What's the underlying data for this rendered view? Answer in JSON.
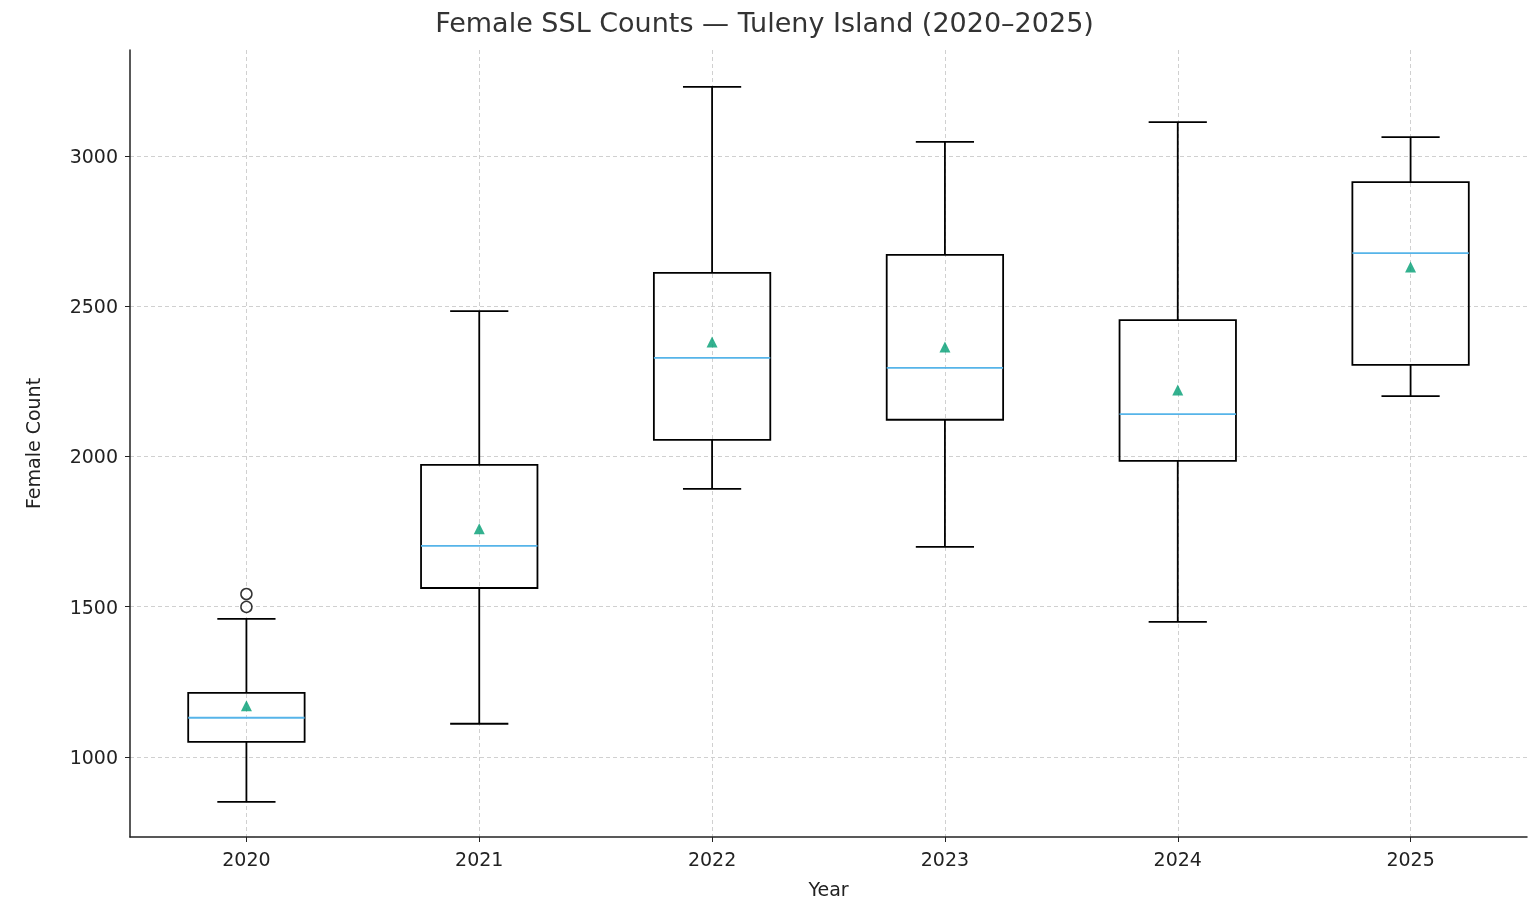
{
  "chart_data": {
    "type": "box",
    "title": "Female SSL Counts — Tuleny Island (2020–2025)",
    "xlabel": "Year",
    "ylabel": "Female Count",
    "categories": [
      "2020",
      "2021",
      "2022",
      "2023",
      "2024",
      "2025"
    ],
    "series": [
      {
        "color": "#000000",
        "boxes": [
          {
            "low": 850,
            "q1": 1050,
            "median": 1130,
            "q3": 1213,
            "high": 1459,
            "mean": 1170,
            "outliers": [
              1499,
              1542
            ]
          },
          {
            "low": 1110,
            "q1": 1562,
            "median": 1702,
            "q3": 1972,
            "high": 2484,
            "mean": 1759
          },
          {
            "low": 1892,
            "q1": 2055,
            "median": 2328,
            "q3": 2611,
            "high": 3230,
            "mean": 2381
          },
          {
            "low": 1699,
            "q1": 2122,
            "median": 2295,
            "q3": 2671,
            "high": 3047,
            "mean": 2364
          },
          {
            "low": 1449,
            "q1": 1985,
            "median": 2141,
            "q3": 2454,
            "high": 3113,
            "mean": 2221
          },
          {
            "low": 2201,
            "q1": 2305,
            "median": 2677,
            "q3": 2913,
            "high": 3063,
            "mean": 2631
          }
        ]
      }
    ],
    "ylim": [
      733,
      3353
    ],
    "yticks": [
      1000,
      1500,
      2000,
      2500,
      3000
    ],
    "grid": true
  }
}
